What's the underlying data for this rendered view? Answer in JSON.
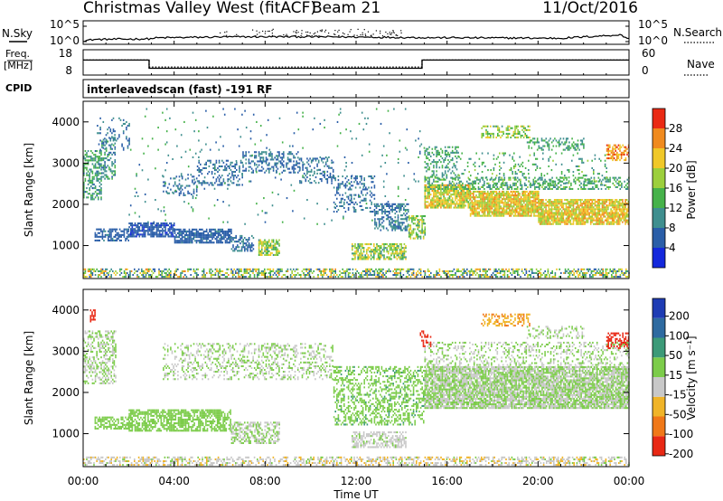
{
  "header": {
    "title": "Christmas Valley West (fitACF)",
    "beam": "Beam 21",
    "date": "11/Oct/2016"
  },
  "strip_labels": {
    "nsky": "N.Sky",
    "freq_line1": "Freq.",
    "freq_line2": "[MHz]",
    "cpid": "CPID",
    "nsearch": "N.Search",
    "nave": "Nave",
    "scan_mode": "interleavedscan (fast) -191 RF",
    "nsky_ticks": [
      "10^5",
      "10^0"
    ],
    "freq_ticks": [
      "18",
      "8"
    ],
    "nsearch_ticks": [
      "10^5",
      "10^0"
    ],
    "nave_ticks": [
      "60",
      "0"
    ]
  },
  "axes": {
    "xlabel": "Time UT",
    "ylabel": "Slant Range [km]",
    "xticks": [
      "00:00",
      "04:00",
      "08:00",
      "12:00",
      "16:00",
      "20:00",
      "00:00"
    ],
    "yticks": [
      "1000",
      "2000",
      "3000",
      "4000"
    ]
  },
  "colorbars": {
    "power": {
      "label": "Power [dB]",
      "ticks": [
        "4",
        "8",
        "12",
        "16",
        "20",
        "24",
        "28"
      ],
      "colors": [
        "#1428dc",
        "#2a5ea8",
        "#3f8f8f",
        "#46b24a",
        "#9ccf3c",
        "#f0c828",
        "#f08a1e",
        "#ea2a14"
      ]
    },
    "velocity": {
      "label": "Velocity [m s⁻¹]",
      "ticks": [
        "200",
        "100",
        "50",
        "15",
        "-15",
        "-50",
        "-100",
        "-200"
      ],
      "colors": [
        "#1e3cb4",
        "#2e6aa0",
        "#3c9a78",
        "#7ccc4a",
        "#c8c8c8",
        "#f0b428",
        "#f07818",
        "#e82814"
      ]
    }
  },
  "chart_data": [
    {
      "type": "line",
      "name": "N.Sky / N.Search",
      "x": [
        0,
        0.5,
        3,
        3.1,
        6,
        9,
        12,
        15,
        18,
        21,
        23.6,
        24
      ],
      "nsky_log": [
        0.3,
        0.7,
        0.9,
        1.2,
        1.5,
        1.6,
        1.5,
        1.3,
        1.2,
        1.1,
        2.2,
        0.9
      ],
      "ylim_log": [
        0,
        5
      ]
    },
    {
      "type": "line",
      "name": "Frequency / Nave",
      "segments": [
        {
          "start": 0,
          "end": 2.9,
          "freq_mhz": 14.0,
          "nave": 36
        },
        {
          "start": 2.9,
          "end": 14.9,
          "freq_mhz": 10.5,
          "nave": 18
        },
        {
          "start": 14.9,
          "end": 24,
          "freq_mhz": 14.0,
          "nave": 36
        }
      ],
      "ylim_freq": [
        8,
        18
      ],
      "ylim_nave": [
        0,
        60
      ]
    },
    {
      "type": "heatmap",
      "name": "Power",
      "xlim": [
        0,
        24
      ],
      "ylim": [
        200,
        4500
      ],
      "zlim": [
        0,
        30
      ],
      "regions": [
        {
          "t0": 0.0,
          "t1": 0.8,
          "r0": 2100,
          "r1": 3300,
          "z": 11,
          "spread": 4,
          "density": 0.5
        },
        {
          "t0": 0.8,
          "t1": 1.4,
          "r0": 2600,
          "r1": 3600,
          "z": 10,
          "spread": 4,
          "density": 0.4
        },
        {
          "t0": 0.6,
          "t1": 2.0,
          "r0": 3300,
          "r1": 4100,
          "z": 7,
          "spread": 2,
          "density": 0.15
        },
        {
          "t0": 0.5,
          "t1": 2.0,
          "r0": 1100,
          "r1": 1400,
          "z": 6,
          "spread": 2,
          "density": 0.6
        },
        {
          "t0": 2.0,
          "t1": 4.0,
          "r0": 1200,
          "r1": 1550,
          "z": 5,
          "spread": 2,
          "density": 0.75
        },
        {
          "t0": 4.0,
          "t1": 6.5,
          "r0": 1050,
          "r1": 1400,
          "z": 6,
          "spread": 2,
          "density": 0.75
        },
        {
          "t0": 6.5,
          "t1": 7.5,
          "r0": 850,
          "r1": 1250,
          "z": 7,
          "spread": 2,
          "density": 0.5
        },
        {
          "t0": 7.7,
          "t1": 8.6,
          "r0": 750,
          "r1": 1150,
          "z": 16,
          "spread": 6,
          "density": 0.7
        },
        {
          "t0": 3.5,
          "t1": 5.0,
          "r0": 2200,
          "r1": 2700,
          "z": 7,
          "spread": 2,
          "density": 0.25
        },
        {
          "t0": 5.0,
          "t1": 7.0,
          "r0": 2450,
          "r1": 3050,
          "z": 7,
          "spread": 2,
          "density": 0.35
        },
        {
          "t0": 7.0,
          "t1": 9.5,
          "r0": 2750,
          "r1": 3250,
          "z": 7,
          "spread": 2,
          "density": 0.35
        },
        {
          "t0": 9.5,
          "t1": 11.0,
          "r0": 2500,
          "r1": 3100,
          "z": 7,
          "spread": 2,
          "density": 0.3
        },
        {
          "t0": 11.0,
          "t1": 12.8,
          "r0": 1800,
          "r1": 2700,
          "z": 7,
          "spread": 2,
          "density": 0.3
        },
        {
          "t0": 12.8,
          "t1": 14.3,
          "r0": 1350,
          "r1": 2000,
          "z": 8,
          "spread": 3,
          "density": 0.5
        },
        {
          "t0": 14.3,
          "t1": 15.0,
          "r0": 1150,
          "r1": 1700,
          "z": 16,
          "spread": 6,
          "density": 0.55
        },
        {
          "t0": 11.8,
          "t1": 14.2,
          "r0": 650,
          "r1": 1050,
          "z": 16,
          "spread": 6,
          "density": 0.65
        },
        {
          "t0": 0.0,
          "t1": 24.0,
          "r0": 220,
          "r1": 420,
          "z": 14,
          "spread": 10,
          "density": 0.5
        },
        {
          "t0": 15.0,
          "t1": 17.0,
          "r0": 1900,
          "r1": 2450,
          "z": 19,
          "spread": 5,
          "density": 0.85
        },
        {
          "t0": 17.0,
          "t1": 20.0,
          "r0": 1700,
          "r1": 2300,
          "z": 20,
          "spread": 5,
          "density": 0.85
        },
        {
          "t0": 20.0,
          "t1": 24.0,
          "r0": 1500,
          "r1": 2100,
          "z": 20,
          "spread": 5,
          "density": 0.85
        },
        {
          "t0": 15.0,
          "t1": 24.0,
          "r0": 2350,
          "r1": 2650,
          "z": 12,
          "spread": 4,
          "density": 0.4
        },
        {
          "t0": 15.0,
          "t1": 16.5,
          "r0": 2600,
          "r1": 3400,
          "z": 11,
          "spread": 3,
          "density": 0.3
        },
        {
          "t0": 17.5,
          "t1": 19.6,
          "r0": 3600,
          "r1": 3900,
          "z": 16,
          "spread": 6,
          "density": 0.5
        },
        {
          "t0": 19.5,
          "t1": 22.0,
          "r0": 3300,
          "r1": 3600,
          "z": 11,
          "spread": 3,
          "density": 0.35
        },
        {
          "t0": 23.0,
          "t1": 24.0,
          "r0": 3050,
          "r1": 3450,
          "z": 24,
          "spread": 4,
          "density": 0.6
        },
        {
          "t0": 16.5,
          "t1": 23.0,
          "r0": 2450,
          "r1": 3250,
          "z": 12,
          "spread": 4,
          "density": 0.12
        },
        {
          "t0": 2.0,
          "t1": 15.0,
          "r0": 1500,
          "r1": 4300,
          "z": 10,
          "spread": 4,
          "density": 0.02
        }
      ]
    },
    {
      "type": "heatmap",
      "name": "Velocity",
      "xlim": [
        0,
        24
      ],
      "ylim": [
        200,
        4500
      ],
      "zlim": [
        -200,
        200
      ],
      "regions": [
        {
          "t0": 0.0,
          "t1": 1.4,
          "r0": 2200,
          "r1": 3500,
          "z": 0,
          "spread": 30,
          "density": 0.45
        },
        {
          "t0": 0.3,
          "t1": 0.5,
          "r0": 3700,
          "r1": 4000,
          "z": -180,
          "spread": 20,
          "density": 0.5
        },
        {
          "t0": 0.5,
          "t1": 2.0,
          "r0": 1100,
          "r1": 1400,
          "z": 25,
          "spread": 20,
          "density": 0.6
        },
        {
          "t0": 2.0,
          "t1": 6.5,
          "r0": 1050,
          "r1": 1550,
          "z": 30,
          "spread": 20,
          "density": 0.65
        },
        {
          "t0": 6.5,
          "t1": 8.6,
          "r0": 750,
          "r1": 1250,
          "z": 0,
          "spread": 10,
          "density": 0.55
        },
        {
          "t0": 3.5,
          "t1": 11.0,
          "r0": 2300,
          "r1": 3200,
          "z": 0,
          "spread": 8,
          "density": 0.3
        },
        {
          "t0": 11.0,
          "t1": 15.0,
          "r0": 1200,
          "r1": 2600,
          "z": 35,
          "spread": 20,
          "density": 0.4
        },
        {
          "t0": 11.8,
          "t1": 14.2,
          "r0": 650,
          "r1": 1050,
          "z": -20,
          "spread": 30,
          "density": 0.6
        },
        {
          "t0": 0.0,
          "t1": 24.0,
          "r0": 220,
          "r1": 420,
          "z": -30,
          "spread": 40,
          "density": 0.5
        },
        {
          "t0": 15.0,
          "t1": 24.0,
          "r0": 1600,
          "r1": 2600,
          "z": 0,
          "spread": 8,
          "density": 0.85
        },
        {
          "t0": 15.0,
          "t1": 24.0,
          "r0": 2600,
          "r1": 3200,
          "z": 0,
          "spread": 10,
          "density": 0.3
        },
        {
          "t0": 17.5,
          "t1": 19.6,
          "r0": 3600,
          "r1": 3900,
          "z": -90,
          "spread": 40,
          "density": 0.5
        },
        {
          "t0": 14.8,
          "t1": 15.3,
          "r0": 3100,
          "r1": 3500,
          "z": -190,
          "spread": 20,
          "density": 0.4
        },
        {
          "t0": 23.0,
          "t1": 24.0,
          "r0": 3050,
          "r1": 3450,
          "z": -180,
          "spread": 30,
          "density": 0.55
        },
        {
          "t0": 19.5,
          "t1": 22.0,
          "r0": 3300,
          "r1": 3600,
          "z": 0,
          "spread": 10,
          "density": 0.3
        }
      ]
    }
  ]
}
